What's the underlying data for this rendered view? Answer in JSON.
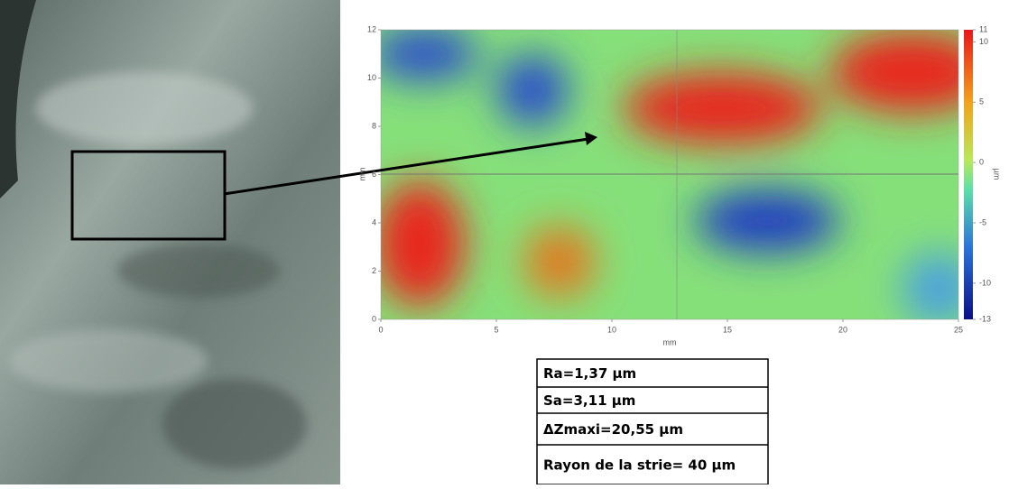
{
  "chart_data": {
    "type": "heatmap",
    "xlabel": "mm",
    "ylabel": "mm",
    "xlim": [
      0,
      25
    ],
    "xticks": [
      0,
      5,
      10,
      15,
      20,
      25
    ],
    "ylim": [
      0,
      12
    ],
    "yticks": [
      0,
      2,
      4,
      6,
      8,
      10,
      12
    ],
    "colorbar": {
      "label": "µm",
      "lim": [
        -13,
        11
      ],
      "ticks": [
        11,
        10,
        5,
        0,
        -5,
        -10,
        -13
      ]
    }
  },
  "table": {
    "rows": [
      "Ra=1,37 µm",
      "Sa=3,11 µm",
      "ΔZmaxi=20,55 µm",
      "Rayon de la strie= 40 µm"
    ]
  }
}
